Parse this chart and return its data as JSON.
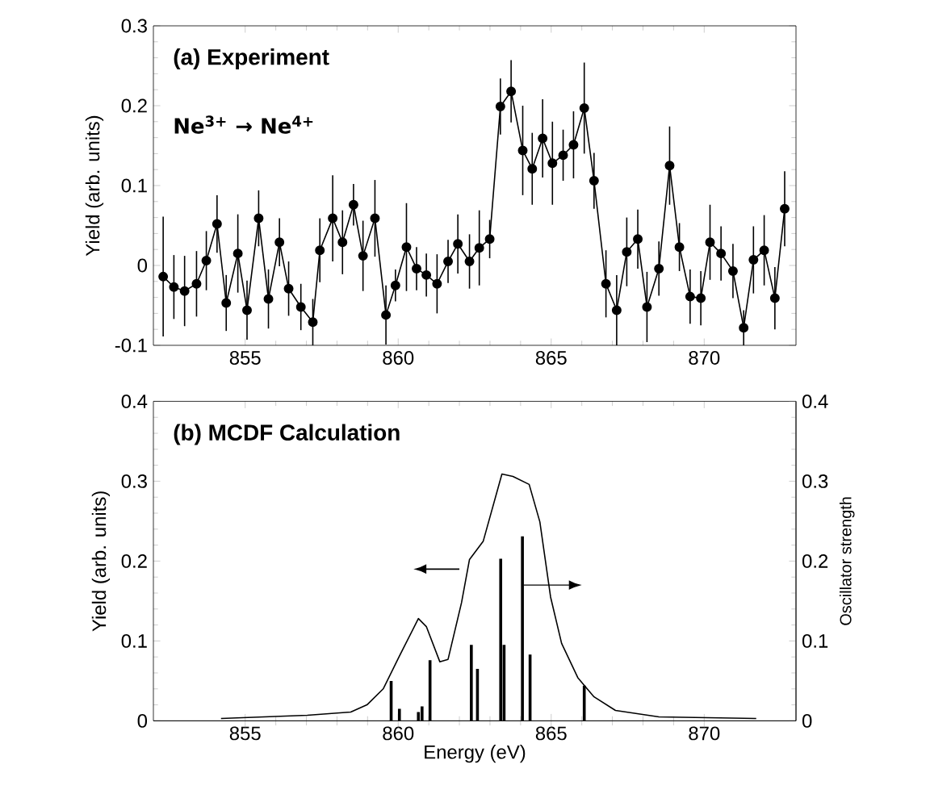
{
  "chart_data": [
    {
      "type": "line",
      "title": "(a) Experiment",
      "annotations": [
        "Ne$^{3+}$ → Ne$^{4+}$"
      ],
      "ylabel": "Yield (arb. units)",
      "color": "#000000",
      "marker": "circle",
      "x": [
        852.32,
        852.67,
        853.02,
        853.41,
        853.73,
        854.08,
        854.38,
        854.76,
        855.06,
        855.44,
        855.76,
        856.12,
        856.42,
        856.82,
        857.21,
        857.44,
        857.86,
        858.18,
        858.54,
        858.85,
        859.24,
        859.6,
        859.91,
        860.27,
        860.6,
        860.92,
        861.27,
        861.63,
        861.95,
        862.33,
        862.65,
        862.99,
        863.34,
        863.69,
        864.07,
        864.38,
        864.72,
        865.04,
        865.39,
        865.73,
        866.08,
        866.4,
        866.79,
        867.14,
        867.47,
        867.83,
        868.13,
        868.52,
        868.87,
        869.19,
        869.54,
        869.89,
        870.19,
        870.55,
        870.94,
        871.29,
        871.61,
        871.96,
        872.31,
        872.63
      ],
      "values": [
        -0.014,
        -0.027,
        -0.032,
        -0.023,
        0.006,
        0.052,
        -0.047,
        0.015,
        -0.056,
        0.059,
        -0.042,
        0.029,
        -0.029,
        -0.052,
        -0.071,
        0.019,
        0.059,
        0.029,
        0.076,
        0.012,
        0.059,
        -0.062,
        -0.025,
        0.023,
        -0.004,
        -0.012,
        -0.023,
        0.005,
        0.027,
        0.005,
        0.022,
        0.033,
        0.199,
        0.218,
        0.144,
        0.121,
        0.159,
        0.128,
        0.138,
        0.151,
        0.197,
        0.106,
        -0.023,
        -0.056,
        0.017,
        0.033,
        -0.052,
        -0.004,
        0.125,
        0.023,
        -0.039,
        -0.041,
        0.029,
        0.015,
        -0.007,
        -0.078,
        0.007,
        0.019,
        -0.041,
        0.071
      ],
      "errors": [
        0.075,
        0.04,
        0.044,
        0.041,
        0.037,
        0.036,
        0.035,
        0.049,
        0.037,
        0.035,
        0.037,
        0.03,
        0.034,
        0.029,
        0.029,
        0.04,
        0.054,
        0.04,
        0.026,
        0.044,
        0.048,
        0.037,
        0.02,
        0.055,
        0.027,
        0.027,
        0.037,
        0.027,
        0.037,
        0.034,
        0.047,
        0.024,
        0.035,
        0.039,
        0.056,
        0.045,
        0.049,
        0.052,
        0.032,
        0.042,
        0.057,
        0.035,
        0.042,
        0.044,
        0.043,
        0.037,
        0.044,
        0.034,
        0.049,
        0.03,
        0.034,
        0.034,
        0.047,
        0.034,
        0.034,
        0.022,
        0.042,
        0.044,
        0.039,
        0.047
      ],
      "xlim": [
        852,
        873
      ],
      "ylim": [
        -0.1,
        0.3
      ],
      "xticks": [
        855,
        860,
        865,
        870
      ],
      "yticks": [
        -0.1,
        0,
        0.1,
        0.2,
        0.3
      ]
    },
    {
      "type": "line",
      "title": "(b) MCDF Calculation",
      "xlabel": "Energy (eV)",
      "ylabel": "Yield (arb. units)",
      "y2label": "Oscillator strength",
      "series": [
        {
          "type": "line",
          "color": "#000000",
          "x": [
            854.21,
            857.03,
            858.45,
            858.98,
            859.51,
            860.04,
            860.66,
            860.92,
            861.36,
            861.63,
            862.07,
            862.33,
            862.78,
            863.39,
            863.75,
            864.28,
            864.63,
            864.98,
            865.34,
            865.87,
            866.4,
            867.1,
            868.52,
            871.7
          ],
          "values": [
            0.003,
            0.007,
            0.011,
            0.02,
            0.04,
            0.081,
            0.128,
            0.118,
            0.074,
            0.077,
            0.148,
            0.202,
            0.225,
            0.309,
            0.306,
            0.296,
            0.249,
            0.155,
            0.097,
            0.054,
            0.03,
            0.013,
            0.005,
            0.003
          ]
        },
        {
          "type": "bar",
          "axis": "y2",
          "color": "#000000",
          "x": [
            859.77,
            860.04,
            860.66,
            860.78,
            861.04,
            862.39,
            862.59,
            863.35,
            863.46,
            864.06,
            864.31,
            866.08
          ],
          "values": [
            0.05,
            0.015,
            0.011,
            0.018,
            0.076,
            0.095,
            0.065,
            0.203,
            0.095,
            0.231,
            0.083,
            0.044
          ]
        }
      ],
      "xlim": [
        852,
        873
      ],
      "ylim": [
        0,
        0.4
      ],
      "y2lim": [
        0,
        0.4
      ],
      "xticks": [
        855,
        860,
        865,
        870
      ],
      "yticks": [
        0,
        0.1,
        0.2,
        0.3,
        0.4
      ],
      "y2ticks": [
        0,
        0.1,
        0.2,
        0.3,
        0.4
      ]
    }
  ]
}
